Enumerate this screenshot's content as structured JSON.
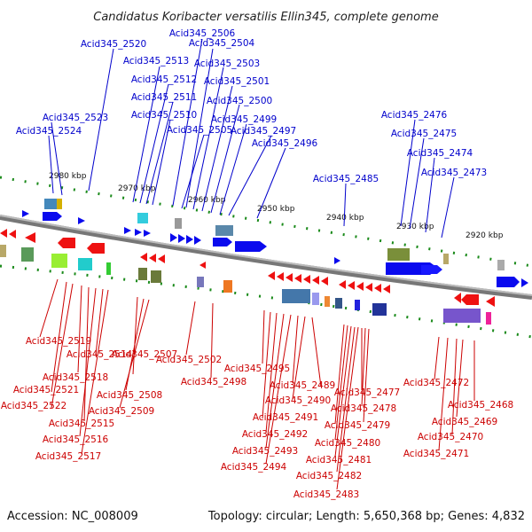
{
  "title": "Candidatus Koribacter versatilis Ellin345, complete genome",
  "footer": {
    "accession": "Accession: NC_008009",
    "topology": "Topology: circular; Length: 5,650,368 bp; Genes: 4,832"
  },
  "colors": {
    "top_label": "#0000cc",
    "bottom_label": "#cc0000",
    "backbone": "#888888",
    "scale_dot": "#1a8a1a"
  },
  "scale_ticks": [
    "2980 kbp",
    "2970 kbp",
    "2960 kbp",
    "2950 kbp",
    "2940 kbp",
    "2930 kbp",
    "2920 kbp"
  ],
  "top_genes": [
    "Acid345_2520",
    "Acid345_2506",
    "Acid345_2504",
    "Acid345_2513",
    "Acid345_2503",
    "Acid345_2512",
    "Acid345_2501",
    "Acid345_2511",
    "Acid345_2500",
    "Acid345_2510",
    "Acid345_2523",
    "Acid345_2499",
    "Acid345_2524",
    "Acid345_2505",
    "Acid345_2497",
    "Acid345_2496",
    "Acid345_2476",
    "Acid345_2475",
    "Acid345_2474",
    "Acid345_2473",
    "Acid345_2485"
  ],
  "bottom_genes": [
    "Acid345_2519",
    "Acid345_2514",
    "Acid345_2507",
    "Acid345_2502",
    "Acid345_2518",
    "Acid345_2495",
    "Acid345_2498",
    "Acid345_2521",
    "Acid345_2508",
    "Acid345_2489",
    "Acid345_2472",
    "Acid345_2477",
    "Acid345_2522",
    "Acid345_2509",
    "Acid345_2490",
    "Acid345_2468",
    "Acid345_2478",
    "Acid345_2515",
    "Acid345_2491",
    "Acid345_2469",
    "Acid345_2479",
    "Acid345_2516",
    "Acid345_2492",
    "Acid345_2470",
    "Acid345_2480",
    "Acid345_2517",
    "Acid345_2493",
    "Acid345_2471",
    "Acid345_2481",
    "Acid345_2494",
    "Acid345_2482",
    "Acid345_2483"
  ]
}
